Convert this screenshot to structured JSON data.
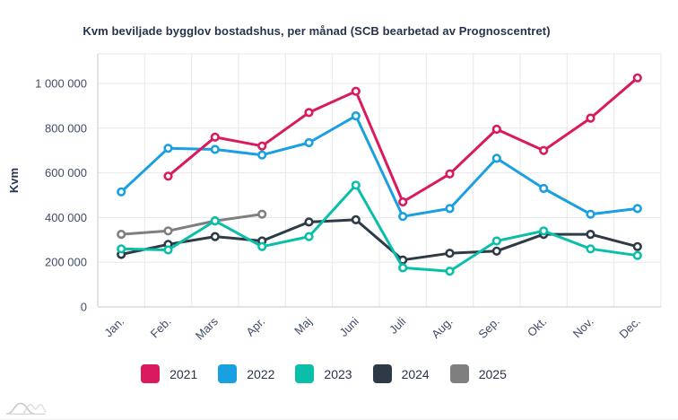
{
  "title": "Kvm beviljade bygglov bostadshus, per månad (SCB bearbetad av Prognoscentret)",
  "chart_data": {
    "type": "line",
    "title": "Kvm beviljade bygglov bostadshus, per månad (SCB bearbetad av Prognoscentret)",
    "xlabel": "",
    "ylabel": "Kvm",
    "ylim": [
      0,
      1000000
    ],
    "ytick_step": 200000,
    "ytick_labels": [
      "0",
      "200 000",
      "400 000",
      "600 000",
      "800 000",
      "1 000 000"
    ],
    "grid": true,
    "legend_position": "bottom",
    "categories": [
      "Jan.",
      "Feb.",
      "Mars",
      "Apr.",
      "Maj",
      "Juni",
      "Juli",
      "Aug.",
      "Sep.",
      "Okt.",
      "Nov.",
      "Dec."
    ],
    "series": [
      {
        "name": "2021",
        "color": "#D91A5F",
        "values": [
          null,
          585000,
          760000,
          720000,
          870000,
          965000,
          470000,
          595000,
          795000,
          700000,
          845000,
          1025000
        ]
      },
      {
        "name": "2022",
        "color": "#1A9FE1",
        "values": [
          515000,
          710000,
          705000,
          680000,
          735000,
          855000,
          405000,
          440000,
          665000,
          530000,
          415000,
          440000
        ]
      },
      {
        "name": "2023",
        "color": "#0ABFA9",
        "values": [
          260000,
          255000,
          385000,
          270000,
          315000,
          545000,
          175000,
          160000,
          295000,
          340000,
          260000,
          230000
        ]
      },
      {
        "name": "2024",
        "color": "#2F3A47",
        "values": [
          235000,
          280000,
          315000,
          295000,
          380000,
          390000,
          210000,
          240000,
          250000,
          325000,
          325000,
          270000
        ]
      },
      {
        "name": "2025",
        "color": "#7F7F7F",
        "values": [
          325000,
          340000,
          385000,
          415000,
          null,
          null,
          null,
          null,
          null,
          null,
          null,
          null
        ]
      }
    ]
  },
  "colors": {
    "title_text": "#26334D",
    "tick_text": "#3F4C68",
    "grid": "#E7E7E7",
    "axis": "#C3C9D2",
    "background": "#FFFFFF"
  }
}
